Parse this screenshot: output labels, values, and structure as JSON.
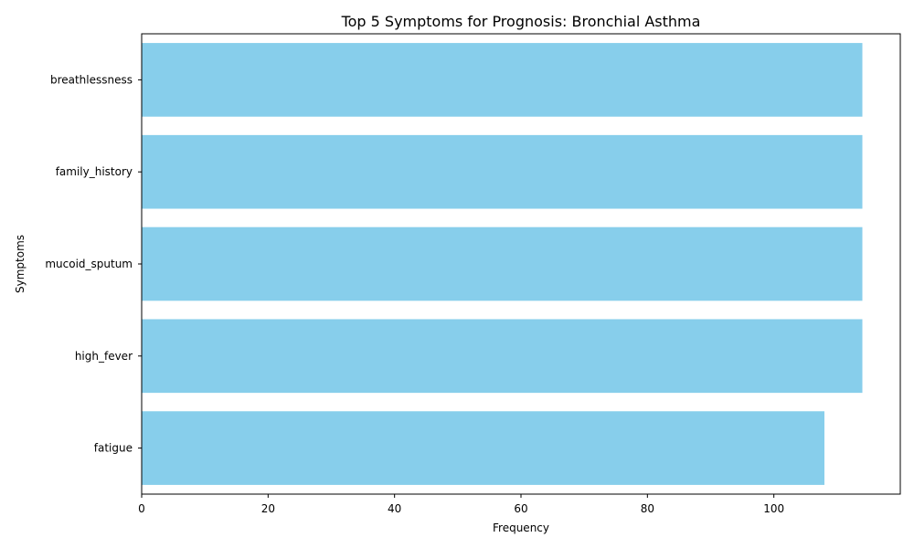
{
  "chart_data": {
    "type": "bar",
    "orientation": "horizontal",
    "title": "Top 5 Symptoms for Prognosis: Bronchial Asthma",
    "xlabel": "Frequency",
    "ylabel": "Symptoms",
    "categories": [
      "breathlessness",
      "family_history",
      "mucoid_sputum",
      "high_fever",
      "fatigue"
    ],
    "values": [
      114,
      114,
      114,
      114,
      108
    ],
    "xlim": [
      0,
      120
    ],
    "xticks": [
      0,
      20,
      40,
      60,
      80,
      100
    ],
    "xtick_labels": [
      "0",
      "20",
      "40",
      "60",
      "80",
      "100"
    ],
    "bar_color": "#87ceeb",
    "grid": false,
    "legend": "none"
  }
}
